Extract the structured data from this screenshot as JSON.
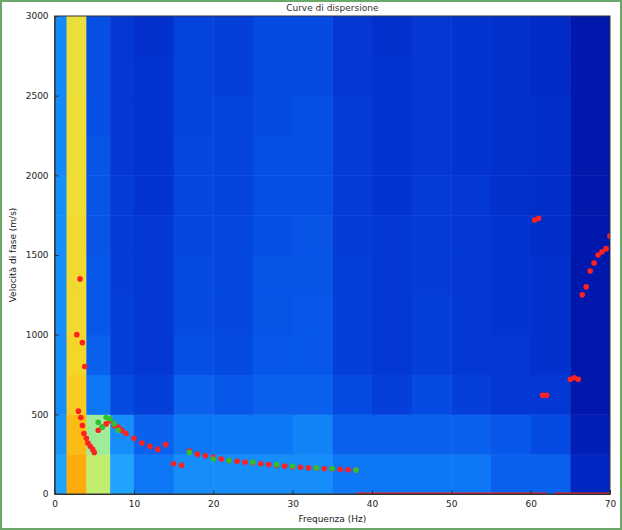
{
  "chart_data": {
    "type": "scatter",
    "title": "Curve di dispersione",
    "x_label": "Frequenza (Hz)",
    "y_label": "Velocità di fase (m/s)",
    "xlim": [
      0,
      70
    ],
    "ylim": [
      0,
      3000
    ],
    "xticks": [
      0,
      10,
      20,
      30,
      40,
      50,
      60,
      70
    ],
    "yticks": [
      0,
      500,
      1000,
      1500,
      2000,
      2500,
      3000
    ],
    "grid": false,
    "heatmap": {
      "x_edges": [
        0,
        1.5,
        4,
        7,
        10,
        15,
        20,
        25,
        30,
        35,
        40,
        45,
        50,
        55,
        60,
        65,
        70
      ],
      "y_edges": [
        0,
        250,
        500,
        750,
        1000,
        1250,
        1500,
        1750,
        2000,
        2250,
        2500,
        2750,
        3000
      ],
      "color_range": [
        0,
        1
      ],
      "cells": [
        [
          0.45,
          0.95,
          0.75,
          0.45,
          0.35,
          0.4,
          0.4,
          0.4,
          0.4,
          0.35,
          0.35,
          0.35,
          0.35,
          0.3,
          0.3,
          0.15
        ],
        [
          0.42,
          0.92,
          0.7,
          0.4,
          0.3,
          0.35,
          0.35,
          0.35,
          0.38,
          0.3,
          0.3,
          0.3,
          0.3,
          0.28,
          0.25,
          0.12
        ],
        [
          0.4,
          0.88,
          0.35,
          0.25,
          0.22,
          0.3,
          0.28,
          0.3,
          0.3,
          0.25,
          0.22,
          0.25,
          0.22,
          0.2,
          0.2,
          0.1
        ],
        [
          0.4,
          0.86,
          0.3,
          0.22,
          0.2,
          0.26,
          0.25,
          0.28,
          0.28,
          0.22,
          0.2,
          0.22,
          0.2,
          0.2,
          0.18,
          0.1
        ],
        [
          0.4,
          0.85,
          0.28,
          0.22,
          0.2,
          0.25,
          0.24,
          0.27,
          0.28,
          0.22,
          0.2,
          0.22,
          0.2,
          0.19,
          0.18,
          0.1
        ],
        [
          0.4,
          0.85,
          0.28,
          0.21,
          0.2,
          0.25,
          0.24,
          0.27,
          0.27,
          0.22,
          0.2,
          0.21,
          0.2,
          0.19,
          0.18,
          0.1
        ],
        [
          0.4,
          0.85,
          0.27,
          0.21,
          0.2,
          0.24,
          0.24,
          0.26,
          0.27,
          0.21,
          0.2,
          0.21,
          0.2,
          0.19,
          0.17,
          0.1
        ],
        [
          0.4,
          0.84,
          0.27,
          0.21,
          0.19,
          0.24,
          0.23,
          0.26,
          0.26,
          0.21,
          0.19,
          0.21,
          0.2,
          0.18,
          0.17,
          0.1
        ],
        [
          0.39,
          0.84,
          0.27,
          0.2,
          0.19,
          0.24,
          0.23,
          0.26,
          0.26,
          0.21,
          0.19,
          0.2,
          0.19,
          0.18,
          0.17,
          0.1
        ],
        [
          0.39,
          0.84,
          0.26,
          0.2,
          0.19,
          0.23,
          0.23,
          0.25,
          0.26,
          0.21,
          0.19,
          0.2,
          0.19,
          0.18,
          0.17,
          0.1
        ],
        [
          0.39,
          0.83,
          0.26,
          0.2,
          0.19,
          0.23,
          0.22,
          0.25,
          0.25,
          0.2,
          0.19,
          0.2,
          0.19,
          0.18,
          0.16,
          0.1
        ],
        [
          0.39,
          0.83,
          0.26,
          0.2,
          0.18,
          0.23,
          0.22,
          0.25,
          0.25,
          0.2,
          0.18,
          0.2,
          0.19,
          0.18,
          0.16,
          0.1
        ]
      ]
    },
    "series": [
      {
        "type": "scatter",
        "color": "#ff2020",
        "marker": "circle",
        "x": [
          2.8,
          3.2,
          3.5,
          3.8,
          3.0,
          3.3,
          3.5,
          3.7,
          4.0,
          4.2,
          4.5,
          4.8,
          5.0,
          5.5,
          6.0,
          6.5,
          7.0,
          7.5,
          8.0,
          8.5,
          9.0,
          10.0,
          11.0,
          12.0,
          13.0,
          14.0,
          15.0,
          16.0,
          17.0,
          18.0,
          19.0,
          20.0,
          21.0,
          22.0,
          23.0,
          24.0,
          25.0,
          26.0,
          27.0,
          28.0,
          29.0,
          30.0,
          31.0,
          32.0,
          33.0,
          34.0,
          35.0,
          36.0,
          37.0,
          38.0,
          60.5,
          61.0,
          61.5,
          62.0,
          65.0,
          65.5,
          66.0,
          66.5,
          67.0,
          67.5,
          68.0,
          68.5,
          69.0,
          69.5,
          70.0
        ],
        "values": [
          1000,
          1350,
          950,
          800,
          520,
          480,
          430,
          380,
          350,
          320,
          300,
          280,
          260,
          400,
          420,
          440,
          460,
          430,
          420,
          400,
          380,
          350,
          320,
          300,
          280,
          310,
          190,
          180,
          270,
          250,
          240,
          230,
          220,
          210,
          205,
          200,
          195,
          190,
          185,
          180,
          175,
          170,
          168,
          165,
          162,
          160,
          158,
          155,
          152,
          150,
          1720,
          1730,
          620,
          620,
          720,
          730,
          720,
          1250,
          1300,
          1400,
          1450,
          1500,
          1520,
          1540,
          1620
        ]
      },
      {
        "type": "scatter",
        "color": "#30c030",
        "marker": "circle",
        "x": [
          5.5,
          6.0,
          6.5,
          7.0,
          7.5,
          8.0,
          17.0,
          20.0,
          22.0,
          25.0,
          28.0,
          30.0,
          33.0,
          35.0,
          38.0
        ],
        "values": [
          450,
          420,
          480,
          470,
          440,
          400,
          260,
          220,
          210,
          200,
          185,
          175,
          165,
          160,
          150
        ]
      },
      {
        "type": "line",
        "color": "#ff2020",
        "line_style": "solid",
        "x": [
          38,
          62,
          62.5,
          63,
          70
        ],
        "values": [
          0,
          0,
          null,
          0,
          0
        ]
      }
    ]
  }
}
